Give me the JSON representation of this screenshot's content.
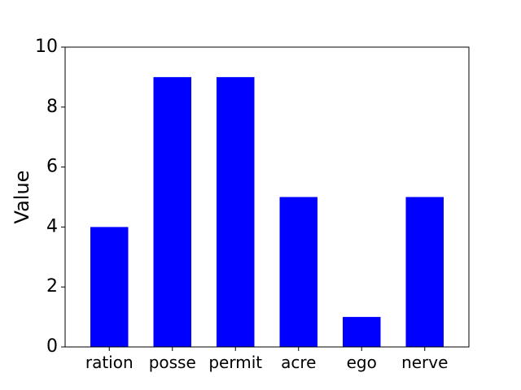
{
  "chart_data": {
    "type": "bar",
    "categories": [
      "ration",
      "posse",
      "permit",
      "acre",
      "ego",
      "nerve"
    ],
    "values": [
      4,
      9,
      9,
      5,
      1,
      5
    ],
    "title": "",
    "xlabel": "",
    "ylabel": "Value",
    "ylim": [
      0,
      10
    ],
    "yticks": [
      0,
      2,
      4,
      6,
      8,
      10
    ],
    "grid": false,
    "legend": "none",
    "bar_color": "#0000ff"
  }
}
